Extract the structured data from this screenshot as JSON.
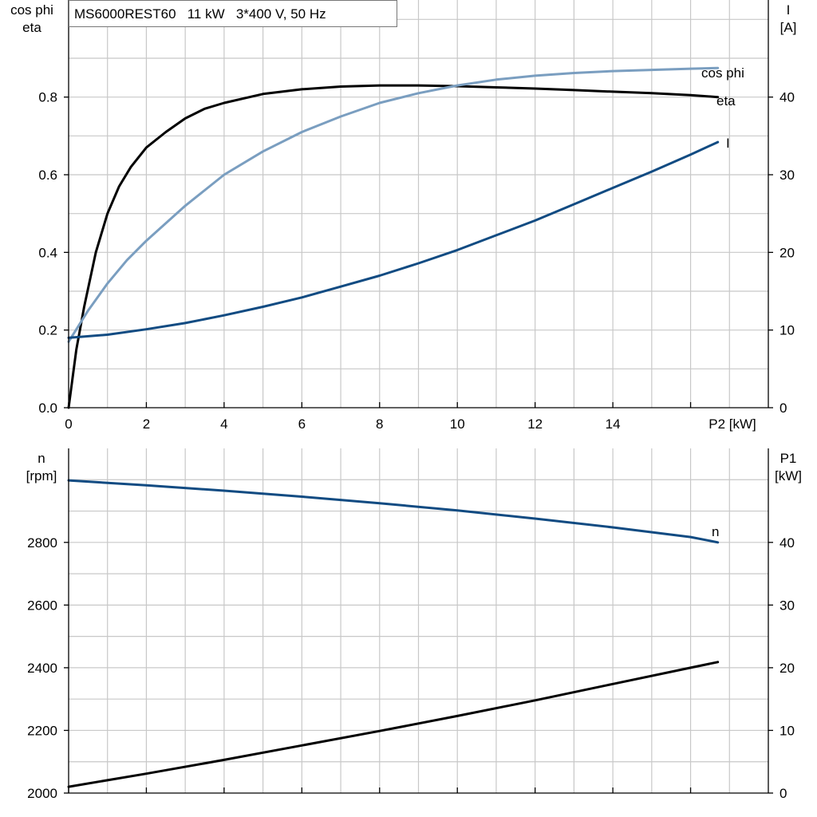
{
  "chart_data": [
    {
      "type": "line",
      "title": "MS6000REST60   11 kW   3*400 V, 50 Hz",
      "xlabel": "P2 [kW]",
      "x_ticks": [
        0,
        2,
        4,
        6,
        8,
        10,
        12,
        14
      ],
      "xlim": [
        0,
        18
      ],
      "left_axis": {
        "label_line1": "cos phi",
        "label_line2": "eta",
        "ylim": [
          0,
          1.05
        ],
        "ticks": [
          "0.0",
          "0.2",
          "0.4",
          "0.6",
          "0.8"
        ]
      },
      "right_axis": {
        "label_line1": "I",
        "label_line2": "[A]",
        "ylim": [
          0,
          52.5
        ],
        "ticks": [
          "0",
          "10",
          "20",
          "30",
          "40"
        ]
      },
      "grid": true,
      "series": [
        {
          "name": "eta",
          "axis": "left",
          "color": "#000000",
          "x": [
            0,
            0.2,
            0.4,
            0.7,
            1.0,
            1.3,
            1.6,
            2.0,
            2.5,
            3.0,
            3.5,
            4,
            5,
            6,
            7,
            8,
            9,
            10,
            11,
            12,
            13,
            14,
            15,
            16,
            16.7
          ],
          "y": [
            0,
            0.15,
            0.26,
            0.4,
            0.5,
            0.57,
            0.62,
            0.67,
            0.71,
            0.745,
            0.77,
            0.785,
            0.808,
            0.82,
            0.827,
            0.83,
            0.83,
            0.828,
            0.825,
            0.822,
            0.818,
            0.814,
            0.81,
            0.805,
            0.8
          ]
        },
        {
          "name": "cos phi",
          "axis": "left",
          "color": "#7a9ec0",
          "x": [
            0,
            0.5,
            1,
            1.5,
            2,
            3,
            4,
            5,
            6,
            7,
            8,
            9,
            10,
            11,
            12,
            13,
            14,
            15,
            16,
            16.7
          ],
          "y": [
            0.17,
            0.25,
            0.32,
            0.38,
            0.43,
            0.52,
            0.6,
            0.66,
            0.71,
            0.75,
            0.785,
            0.81,
            0.83,
            0.845,
            0.855,
            0.862,
            0.867,
            0.87,
            0.873,
            0.875
          ]
        },
        {
          "name": "I",
          "axis": "right",
          "color": "#114b82",
          "x": [
            0,
            1,
            2,
            3,
            4,
            5,
            6,
            7,
            8,
            9,
            10,
            11,
            12,
            13,
            14,
            15,
            16,
            16.7
          ],
          "y": [
            9,
            9.4,
            10.1,
            10.9,
            11.9,
            13.0,
            14.2,
            15.6,
            17.0,
            18.6,
            20.3,
            22.2,
            24.1,
            26.2,
            28.3,
            30.4,
            32.6,
            34.2
          ]
        }
      ]
    },
    {
      "type": "line",
      "x_ticks": [
        0,
        2,
        4,
        6,
        8,
        10,
        12,
        14
      ],
      "xlim": [
        0,
        18
      ],
      "left_axis": {
        "label_line1": "n",
        "label_line2": "[rpm]",
        "ylim": [
          2000,
          3100
        ],
        "ticks": [
          "2000",
          "2200",
          "2400",
          "2600",
          "2800"
        ]
      },
      "right_axis": {
        "label_line1": "P1",
        "label_line2": "[kW]",
        "ylim": [
          0,
          55
        ],
        "ticks": [
          "0",
          "10",
          "20",
          "30",
          "40"
        ]
      },
      "grid": true,
      "series": [
        {
          "name": "n",
          "axis": "left",
          "color": "#114b82",
          "x": [
            0,
            2,
            4,
            6,
            8,
            10,
            12,
            14,
            16,
            16.7
          ],
          "y": [
            2998,
            2982,
            2965,
            2946,
            2925,
            2902,
            2876,
            2848,
            2817,
            2800
          ]
        },
        {
          "name": "",
          "axis": "right",
          "color": "#000000",
          "x": [
            0,
            2,
            4,
            6,
            8,
            10,
            12,
            14,
            16,
            16.7
          ],
          "y": [
            1.0,
            3.1,
            5.3,
            7.6,
            9.9,
            12.3,
            14.8,
            17.4,
            20.0,
            20.9
          ]
        }
      ]
    }
  ]
}
